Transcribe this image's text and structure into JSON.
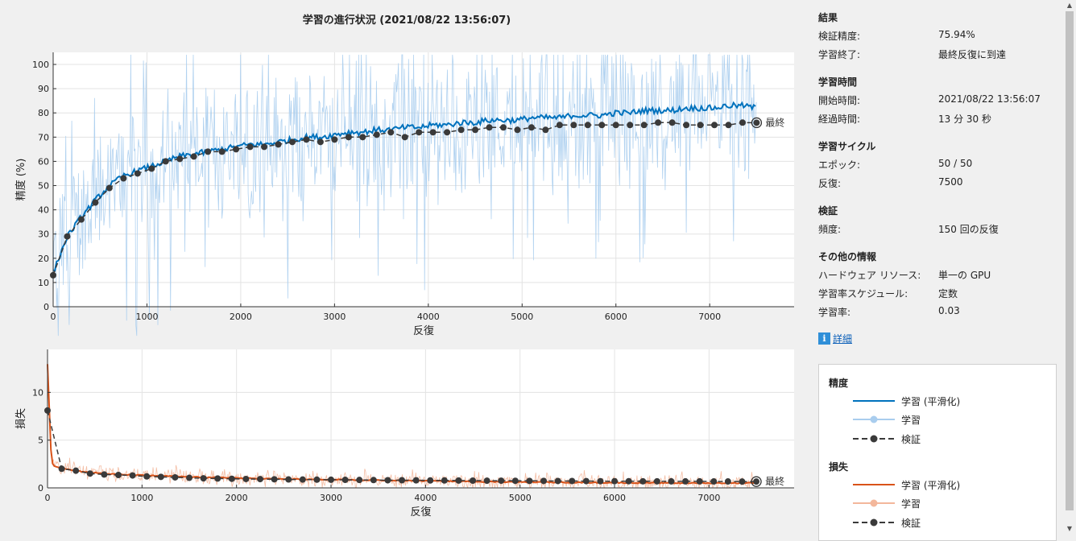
{
  "title": "学習の進行状況 (2021/08/22 13:56:07)",
  "panel": {
    "sections": [
      {
        "title": "結果",
        "rows": [
          {
            "label": "検証精度:",
            "value": "75.94%"
          },
          {
            "label": "学習終了:",
            "value": "最終反復に到達"
          }
        ]
      },
      {
        "title": "学習時間",
        "rows": [
          {
            "label": "開始時間:",
            "value": "2021/08/22 13:56:07"
          },
          {
            "label": "経過時間:",
            "value": "13 分 30 秒"
          }
        ]
      },
      {
        "title": "学習サイクル",
        "rows": [
          {
            "label": "エポック:",
            "value": "50 / 50"
          },
          {
            "label": "反復:",
            "value": "7500"
          }
        ]
      },
      {
        "title": "検証",
        "rows": [
          {
            "label": "頻度:",
            "value": "150 回の反復"
          }
        ]
      },
      {
        "title": "その他の情報",
        "rows": [
          {
            "label": "ハードウェア リソース:",
            "value": "単一の GPU"
          },
          {
            "label": "学習率スケジュール:",
            "value": "定数"
          },
          {
            "label": "学習率:",
            "value": "0.03"
          }
        ]
      }
    ],
    "details_link": "詳細",
    "info_icon": "info-icon"
  },
  "legend": {
    "accuracy_title": "精度",
    "loss_title": "損失",
    "items": {
      "smoothed": "学習 (平滑化)",
      "training": "学習",
      "validation": "検証"
    }
  },
  "colors": {
    "acc_smooth": "#0072bd",
    "acc_raw": "#a9cdee",
    "loss_smooth": "#d95319",
    "loss_raw": "#f3b79b",
    "validation": "#3a3a3a"
  },
  "chart_data": [
    {
      "type": "line",
      "id": "accuracy",
      "ylabel": "精度 (%)",
      "xlabel": "反復",
      "xlim": [
        0,
        7900
      ],
      "ylim": [
        0,
        105
      ],
      "xticks": [
        0,
        1000,
        2000,
        3000,
        4000,
        5000,
        6000,
        7000
      ],
      "yticks": [
        0,
        10,
        20,
        30,
        40,
        50,
        60,
        70,
        80,
        90,
        100
      ],
      "grid": true,
      "final_label": "最終",
      "series": [
        {
          "name": "学習 (平滑化)",
          "x": [
            0,
            150,
            300,
            450,
            600,
            750,
            900,
            1050,
            1200,
            1350,
            1500,
            1650,
            1800,
            1950,
            2100,
            2250,
            2400,
            2550,
            2700,
            2850,
            3000,
            3150,
            3300,
            3450,
            3600,
            3750,
            3900,
            4050,
            4200,
            4350,
            4500,
            4650,
            4800,
            4950,
            5100,
            5250,
            5400,
            5550,
            5700,
            5850,
            6000,
            6150,
            6300,
            6450,
            6600,
            6750,
            6900,
            7050,
            7200,
            7350,
            7500
          ],
          "values": [
            14,
            29,
            37,
            44,
            50,
            54,
            56,
            58,
            60,
            62,
            63,
            64,
            65,
            66,
            67,
            67,
            68,
            69,
            70,
            70,
            71,
            72,
            72,
            73,
            73,
            74,
            74,
            75,
            75,
            76,
            76,
            77,
            77,
            77,
            78,
            78,
            78,
            79,
            79,
            79,
            80,
            80,
            81,
            81,
            81,
            82,
            82,
            82,
            83,
            83,
            82
          ]
        },
        {
          "name": "検証",
          "x": [
            0,
            150,
            300,
            450,
            600,
            750,
            900,
            1050,
            1200,
            1350,
            1500,
            1650,
            1800,
            1950,
            2100,
            2250,
            2400,
            2550,
            2700,
            2850,
            3000,
            3150,
            3300,
            3450,
            3600,
            3750,
            3900,
            4050,
            4200,
            4350,
            4500,
            4650,
            4800,
            4950,
            5100,
            5250,
            5400,
            5550,
            5700,
            5850,
            6000,
            6150,
            6300,
            6450,
            6600,
            6750,
            6900,
            7050,
            7200,
            7350,
            7500
          ],
          "values": [
            13,
            29,
            36,
            43,
            49,
            53,
            55,
            57,
            60,
            61,
            62,
            64,
            64,
            65,
            66,
            66,
            67,
            68,
            69,
            68,
            69,
            70,
            70,
            71,
            72,
            70,
            72,
            72,
            72,
            73,
            73,
            74,
            74,
            73,
            74,
            73,
            75,
            75,
            75,
            75,
            75,
            75,
            75,
            76,
            76,
            75,
            75,
            75,
            75,
            76,
            75.94
          ]
        }
      ]
    },
    {
      "type": "line",
      "id": "loss",
      "ylabel": "損失",
      "xlabel": "反復",
      "xlim": [
        0,
        7900
      ],
      "ylim": [
        0,
        14.5
      ],
      "xticks": [
        0,
        1000,
        2000,
        3000,
        4000,
        5000,
        6000,
        7000
      ],
      "yticks": [
        0,
        5,
        10
      ],
      "grid": true,
      "final_label": "最終",
      "series": [
        {
          "name": "学習 (平滑化)",
          "x": [
            0,
            20,
            40,
            60,
            150,
            300,
            450,
            600,
            750,
            900,
            1050,
            1200,
            1350,
            1500,
            1650,
            1800,
            1950,
            2100,
            2250,
            2400,
            2550,
            2700,
            2850,
            3000,
            3150,
            3300,
            3450,
            3600,
            3750,
            3900,
            4050,
            4200,
            4350,
            4500,
            4650,
            4800,
            4950,
            5100,
            5250,
            5400,
            5550,
            5700,
            5850,
            6000,
            6150,
            6300,
            6450,
            6600,
            6750,
            6900,
            7050,
            7200,
            7350,
            7500
          ],
          "values": [
            13,
            8,
            3,
            2.3,
            2.1,
            1.8,
            1.6,
            1.5,
            1.4,
            1.35,
            1.3,
            1.25,
            1.2,
            1.15,
            1.1,
            1.08,
            1.05,
            1.0,
            0.98,
            0.95,
            0.92,
            0.9,
            0.88,
            0.86,
            0.84,
            0.82,
            0.8,
            0.78,
            0.76,
            0.74,
            0.72,
            0.7,
            0.68,
            0.66,
            0.64,
            0.63,
            0.62,
            0.6,
            0.59,
            0.58,
            0.57,
            0.56,
            0.55,
            0.54,
            0.53,
            0.52,
            0.51,
            0.5,
            0.5,
            0.5,
            0.5,
            0.5,
            0.5,
            0.55
          ]
        },
        {
          "name": "検証",
          "x": [
            0,
            150,
            300,
            450,
            600,
            750,
            900,
            1050,
            1200,
            1350,
            1500,
            1650,
            1800,
            1950,
            2100,
            2250,
            2400,
            2550,
            2700,
            2850,
            3000,
            3150,
            3300,
            3450,
            3600,
            3750,
            3900,
            4050,
            4200,
            4350,
            4500,
            4650,
            4800,
            4950,
            5100,
            5250,
            5400,
            5550,
            5700,
            5850,
            6000,
            6150,
            6300,
            6450,
            6600,
            6750,
            6900,
            7050,
            7200,
            7350,
            7500
          ],
          "values": [
            8.1,
            2.0,
            1.8,
            1.5,
            1.4,
            1.35,
            1.3,
            1.2,
            1.15,
            1.1,
            1.05,
            1.0,
            0.98,
            0.95,
            0.93,
            0.92,
            0.9,
            0.88,
            0.87,
            0.86,
            0.85,
            0.84,
            0.83,
            0.82,
            0.8,
            0.8,
            0.79,
            0.78,
            0.78,
            0.77,
            0.76,
            0.75,
            0.75,
            0.74,
            0.73,
            0.73,
            0.72,
            0.72,
            0.71,
            0.7,
            0.7,
            0.7,
            0.69,
            0.69,
            0.68,
            0.68,
            0.68,
            0.67,
            0.67,
            0.66,
            0.66
          ]
        }
      ]
    }
  ]
}
